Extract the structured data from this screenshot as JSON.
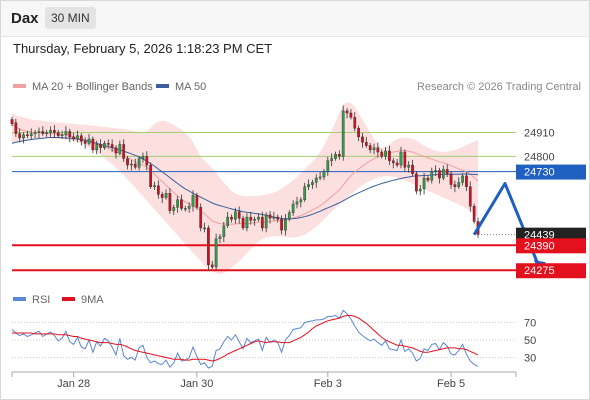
{
  "header": {
    "symbol": "Dax",
    "timeframe": "30 MIN",
    "datetime": "Thursday, February 5, 2026 1:18:23 PM CET"
  },
  "colors": {
    "up_candle": "#2e9e4a",
    "down_candle": "#d0101e",
    "bollinger_fill": "#fbd9d9",
    "ma20": "#f0a0a0",
    "ma50": "#3a5fa0",
    "resistance": "#9fcf6f",
    "support": "#e3101e",
    "pivot": "#1f5fbf",
    "current_price_bg": "#222222",
    "rsi": "#5c86d6",
    "rsi_ma": "#e3101e"
  },
  "chart_data": [
    {
      "type": "candlestick",
      "legend": [
        {
          "name": "MA 20 + Bollinger Bands",
          "color": "#f0a0a0"
        },
        {
          "name": "MA 50",
          "color": "#3a5fa0"
        }
      ],
      "legend_placement": "top-left",
      "credit": "Research © 2026 Trading Central",
      "x_ticks": [
        "Jan 28",
        "Jan 30",
        "Feb 3",
        "Feb 5"
      ],
      "ylim": [
        24230,
        25060
      ],
      "levels": [
        {
          "value": 24910,
          "label": "24910",
          "kind": "resistance"
        },
        {
          "value": 24800,
          "label": "24800",
          "kind": "resistance"
        },
        {
          "value": 24730,
          "label": "24730",
          "kind": "pivot"
        },
        {
          "value": 24439,
          "label": "24439",
          "kind": "current"
        },
        {
          "value": 24390,
          "label": "24390",
          "kind": "support"
        },
        {
          "value": 24275,
          "label": "24275",
          "kind": "support"
        }
      ],
      "scenario_path": [
        [
          120,
          24439
        ],
        [
          128,
          24675
        ],
        [
          137,
          24285
        ]
      ],
      "close": [
        24950,
        24905,
        24885,
        24900,
        24895,
        24905,
        24910,
        24915,
        24905,
        24910,
        24920,
        24910,
        24895,
        24900,
        24915,
        24890,
        24880,
        24895,
        24870,
        24860,
        24880,
        24830,
        24855,
        24840,
        24860,
        24855,
        24840,
        24815,
        24855,
        24790,
        24760,
        24765,
        24750,
        24790,
        24800,
        24760,
        24660,
        24665,
        24625,
        24610,
        24630,
        24550,
        24565,
        24600,
        24560,
        24560,
        24570,
        24620,
        24565,
        24470,
        24470,
        24300,
        24290,
        24420,
        24430,
        24480,
        24520,
        24510,
        24545,
        24515,
        24470,
        24520,
        24505,
        24510,
        24520,
        24470,
        24530,
        24515,
        24520,
        24510,
        24460,
        24510,
        24540,
        24580,
        24590,
        24600,
        24660,
        24670,
        24680,
        24700,
        24705,
        24730,
        24780,
        24790,
        24810,
        24800,
        25010,
        25000,
        24980,
        24930,
        24890,
        24865,
        24850,
        24830,
        24840,
        24820,
        24800,
        24825,
        24780,
        24770,
        24760,
        24820,
        24750,
        24760,
        24720,
        24640,
        24650,
        24700,
        24690,
        24730,
        24735,
        24700,
        24740,
        24720,
        24670,
        24660,
        24680,
        24710,
        24660,
        24570,
        24500,
        24440
      ],
      "open": [
        24970,
        24955,
        24905,
        24885,
        24900,
        24895,
        24905,
        24910,
        24915,
        24905,
        24910,
        24920,
        24910,
        24895,
        24900,
        24915,
        24890,
        24880,
        24895,
        24870,
        24860,
        24880,
        24830,
        24855,
        24840,
        24860,
        24855,
        24840,
        24815,
        24855,
        24790,
        24760,
        24765,
        24750,
        24790,
        24800,
        24760,
        24660,
        24665,
        24625,
        24610,
        24630,
        24550,
        24565,
        24600,
        24560,
        24560,
        24570,
        24620,
        24565,
        24470,
        24470,
        24300,
        24290,
        24420,
        24430,
        24480,
        24520,
        24510,
        24545,
        24515,
        24470,
        24520,
        24505,
        24510,
        24520,
        24470,
        24530,
        24515,
        24520,
        24510,
        24460,
        24510,
        24540,
        24580,
        24590,
        24600,
        24660,
        24670,
        24680,
        24700,
        24705,
        24730,
        24780,
        24790,
        24810,
        24800,
        25010,
        25000,
        24980,
        24930,
        24890,
        24865,
        24850,
        24830,
        24840,
        24820,
        24800,
        24825,
        24780,
        24770,
        24760,
        24820,
        24750,
        24760,
        24720,
        24640,
        24650,
        24700,
        24690,
        24730,
        24735,
        24700,
        24740,
        24720,
        24670,
        24660,
        24680,
        24710,
        24660,
        24570,
        24500
      ],
      "ma20": [
        24945,
        24935,
        24925,
        24920,
        24915,
        24912,
        24910,
        24910,
        24908,
        24906,
        24905,
        24904,
        24902,
        24900,
        24898,
        24895,
        24890,
        24885,
        24880,
        24875,
        24870,
        24862,
        24856,
        24850,
        24843,
        24837,
        24830,
        24822,
        24815,
        24805,
        24795,
        24785,
        24775,
        24768,
        24760,
        24750,
        24735,
        24718,
        24700,
        24683,
        24667,
        24650,
        24633,
        24618,
        24603,
        24590,
        24580,
        24572,
        24562,
        24548,
        24535,
        24518,
        24502,
        24495,
        24490,
        24488,
        24487,
        24487,
        24488,
        24490,
        24490,
        24490,
        24492,
        24495,
        24497,
        24497,
        24498,
        24500,
        24502,
        24504,
        24505,
        24507,
        24511,
        24516,
        24521,
        24527,
        24535,
        24544,
        24553,
        24562,
        24572,
        24585,
        24600,
        24615,
        24630,
        24645,
        24668,
        24690,
        24710,
        24728,
        24742,
        24755,
        24768,
        24779,
        24789,
        24798,
        24805,
        24812,
        24817,
        24820,
        24823,
        24827,
        24826,
        24824,
        24820,
        24812,
        24805,
        24800,
        24793,
        24787,
        24782,
        24775,
        24770,
        24765,
        24757,
        24750,
        24742,
        24737,
        24729,
        24718,
        24703,
        24685
      ],
      "ma50": [
        24860,
        24865,
        24868,
        24872,
        24875,
        24878,
        24880,
        24882,
        24884,
        24886,
        24887,
        24887,
        24887,
        24886,
        24885,
        24884,
        24883,
        24880,
        24877,
        24874,
        24870,
        24865,
        24860,
        24855,
        24850,
        24845,
        24840,
        24835,
        24830,
        24824,
        24818,
        24812,
        24805,
        24797,
        24788,
        24778,
        24767,
        24755,
        24742,
        24729,
        24716,
        24702,
        24688,
        24675,
        24662,
        24650,
        24640,
        24630,
        24621,
        24612,
        24603,
        24594,
        24585,
        24578,
        24573,
        24568,
        24563,
        24558,
        24553,
        24549,
        24545,
        24542,
        24540,
        24537,
        24535,
        24532,
        24528,
        24524,
        24520,
        24517,
        24514,
        24512,
        24512,
        24513,
        24515,
        24518,
        24522,
        24527,
        24533,
        24540,
        24547,
        24555,
        24563,
        24570,
        24578,
        24586,
        24595,
        24605,
        24615,
        24624,
        24632,
        24640,
        24648,
        24656,
        24663,
        24669,
        24675,
        24680,
        24685,
        24690,
        24694,
        24698,
        24702,
        24705,
        24708,
        24710,
        24711,
        24712,
        24713,
        24714,
        24715,
        24716,
        24717,
        24718,
        24718,
        24718,
        24718,
        24719,
        24719,
        24718,
        24717,
        24715
      ],
      "bb_upper": [
        25000,
        24990,
        24985,
        24980,
        24975,
        24970,
        24968,
        24966,
        24964,
        24962,
        24960,
        24958,
        24956,
        24955,
        24953,
        24952,
        24950,
        24948,
        24946,
        24945,
        24944,
        24942,
        24940,
        24938,
        24936,
        24934,
        24932,
        24930,
        24928,
        24926,
        24924,
        24920,
        24916,
        24914,
        24912,
        24914,
        24934,
        24950,
        24960,
        24964,
        24962,
        24955,
        24945,
        24934,
        24922,
        24910,
        24890,
        24865,
        24830,
        24800,
        24780,
        24762,
        24745,
        24725,
        24700,
        24680,
        24660,
        24640,
        24628,
        24622,
        24618,
        24616,
        24616,
        24617,
        24618,
        24620,
        24624,
        24628,
        24634,
        24640,
        24652,
        24664,
        24676,
        24690,
        24706,
        24722,
        24740,
        24758,
        24776,
        24796,
        24820,
        24850,
        24885,
        24920,
        24960,
        25000,
        25040,
        25050,
        25045,
        25030,
        25000,
        24970,
        24940,
        24910,
        24880,
        24855,
        24838,
        24840,
        24855,
        24870,
        24880,
        24885,
        24886,
        24885,
        24880,
        24872,
        24862,
        24850,
        24840,
        24832,
        24826,
        24822,
        24820,
        24822,
        24826,
        24830,
        24836,
        24844,
        24852,
        24860,
        24868,
        24875
      ],
      "bb_lower": [
        24860,
        24865,
        24870,
        24872,
        24874,
        24876,
        24878,
        24880,
        24881,
        24882,
        24882,
        24881,
        24880,
        24879,
        24877,
        24874,
        24870,
        24865,
        24858,
        24850,
        24840,
        24830,
        24818,
        24805,
        24792,
        24778,
        24764,
        24748,
        24732,
        24714,
        24695,
        24676,
        24656,
        24636,
        24616,
        24596,
        24576,
        24556,
        24536,
        24516,
        24496,
        24476,
        24456,
        24436,
        24416,
        24396,
        24376,
        24356,
        24336,
        24316,
        24296,
        24282,
        24270,
        24262,
        24258,
        24262,
        24272,
        24286,
        24300,
        24316,
        24334,
        24352,
        24372,
        24390,
        24406,
        24418,
        24426,
        24430,
        24432,
        24432,
        24430,
        24428,
        24426,
        24426,
        24428,
        24432,
        24440,
        24450,
        24462,
        24476,
        24492,
        24510,
        24528,
        24546,
        24562,
        24578,
        24594,
        24610,
        24626,
        24640,
        24654,
        24667,
        24678,
        24688,
        24696,
        24702,
        24706,
        24708,
        24708,
        24706,
        24702,
        24696,
        24690,
        24682,
        24674,
        24666,
        24658,
        24650,
        24642,
        24634,
        24626,
        24618,
        24610,
        24602,
        24594,
        24586,
        24578,
        24570,
        24560,
        24548,
        24534,
        24518
      ]
    },
    {
      "type": "line",
      "legend": [
        {
          "name": "RSI",
          "color": "#5c86d6"
        },
        {
          "name": "9MA",
          "color": "#e3101e"
        }
      ],
      "legend_placement": "top-left",
      "y_ticks": [
        30,
        50,
        70
      ],
      "ylim": [
        18,
        82
      ],
      "reference_lines": [
        30,
        50,
        70
      ],
      "series": [
        {
          "name": "RSI",
          "values": [
            62,
            58,
            55,
            57,
            54,
            56,
            58,
            60,
            54,
            57,
            59,
            55,
            49,
            52,
            60,
            48,
            45,
            53,
            42,
            40,
            50,
            36,
            48,
            43,
            52,
            49,
            42,
            33,
            52,
            32,
            28,
            30,
            27,
            41,
            44,
            30,
            24,
            26,
            23,
            22,
            27,
            19,
            24,
            35,
            26,
            27,
            30,
            42,
            31,
            22,
            24,
            18,
            20,
            38,
            40,
            48,
            54,
            50,
            56,
            48,
            40,
            52,
            47,
            49,
            51,
            38,
            53,
            47,
            50,
            47,
            36,
            50,
            55,
            62,
            63,
            64,
            70,
            71,
            72,
            73,
            73,
            74,
            77,
            77,
            78,
            75,
            84,
            80,
            74,
            66,
            59,
            55,
            52,
            49,
            51,
            47,
            44,
            49,
            40,
            39,
            38,
            50,
            37,
            40,
            35,
            26,
            29,
            40,
            38,
            45,
            46,
            39,
            47,
            43,
            34,
            33,
            38,
            45,
            34,
            26,
            22,
            20
          ]
        },
        {
          "name": "9MA",
          "values": [
            58,
            58,
            58,
            58,
            58,
            58,
            57,
            57,
            57,
            57,
            57,
            57,
            56,
            56,
            56,
            55,
            54,
            54,
            52,
            51,
            50,
            49,
            48,
            47,
            47,
            47,
            46,
            45,
            45,
            44,
            42,
            40,
            38,
            37,
            36,
            35,
            34,
            33,
            32,
            31,
            30,
            29,
            28,
            28,
            28,
            27,
            27,
            28,
            28,
            28,
            28,
            27,
            26,
            27,
            29,
            31,
            34,
            36,
            38,
            40,
            42,
            44,
            46,
            48,
            49,
            48,
            47,
            48,
            48,
            48,
            47,
            47,
            47,
            49,
            51,
            53,
            56,
            59,
            63,
            66,
            68,
            70,
            72,
            73,
            74,
            75,
            77,
            78,
            78,
            77,
            75,
            72,
            69,
            65,
            61,
            57,
            53,
            50,
            48,
            46,
            44,
            44,
            43,
            42,
            41,
            39,
            37,
            36,
            36,
            37,
            38,
            39,
            40,
            41,
            41,
            41,
            40,
            40,
            39,
            37,
            35,
            33
          ]
        }
      ]
    }
  ]
}
